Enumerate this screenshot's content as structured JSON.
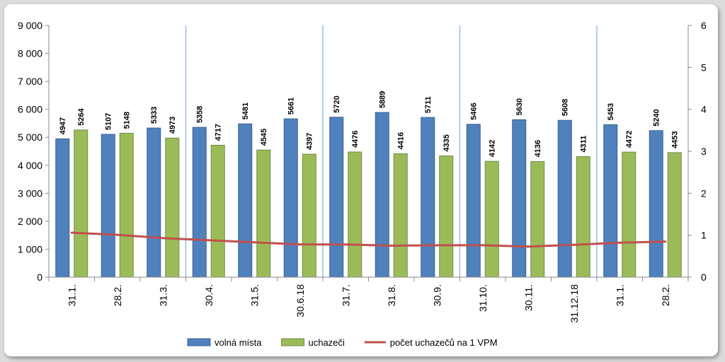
{
  "chart_data": {
    "type": "bar",
    "categories": [
      "31.1.",
      "28.2.",
      "31.3.",
      "30.4.",
      "31.5.",
      "30.6.18",
      "31.7.",
      "31.8.",
      "30.9.",
      "31.10.",
      "30.11.",
      "31.12.18",
      "31.1.",
      "28.2."
    ],
    "series": [
      {
        "name": "volná místa",
        "type": "bar",
        "color": "#4f81bd",
        "values": [
          4947,
          5107,
          5333,
          5358,
          5481,
          5661,
          5720,
          5889,
          5711,
          5466,
          5630,
          5608,
          5453,
          5240
        ]
      },
      {
        "name": "uchazeči",
        "type": "bar",
        "color": "#9bbb59",
        "values": [
          5264,
          5148,
          4973,
          4717,
          4545,
          4397,
          4476,
          4416,
          4335,
          4142,
          4136,
          4311,
          4472,
          4453
        ]
      },
      {
        "name": "počet uchazečů na 1 VPM",
        "type": "line",
        "axis": "right",
        "color": "#c0504d",
        "values": [
          1.06,
          1.01,
          0.93,
          0.88,
          0.83,
          0.78,
          0.78,
          0.75,
          0.76,
          0.76,
          0.73,
          0.77,
          0.82,
          0.85
        ]
      }
    ],
    "y_left": {
      "range": [
        0,
        9000
      ],
      "ticks": [
        0,
        1000,
        2000,
        3000,
        4000,
        5000,
        6000,
        7000,
        8000,
        9000
      ],
      "tick_labels": [
        "0",
        "1 000",
        "2 000",
        "3 000",
        "4 000",
        "5 000",
        "6 000",
        "7 000",
        "8 000",
        "9 000"
      ]
    },
    "y_right": {
      "range": [
        0,
        6
      ],
      "ticks": [
        0,
        1,
        2,
        3,
        4,
        5,
        6
      ],
      "tick_labels": [
        "0",
        "1",
        "2",
        "3",
        "4",
        "5",
        "6"
      ]
    },
    "quarter_separators_after": [
      3,
      6,
      9,
      12
    ],
    "separator_color": "#8db3e2",
    "grid": false,
    "legend": {
      "placement": "bottom"
    },
    "title": "",
    "xlabel": "",
    "ylabel": ""
  }
}
